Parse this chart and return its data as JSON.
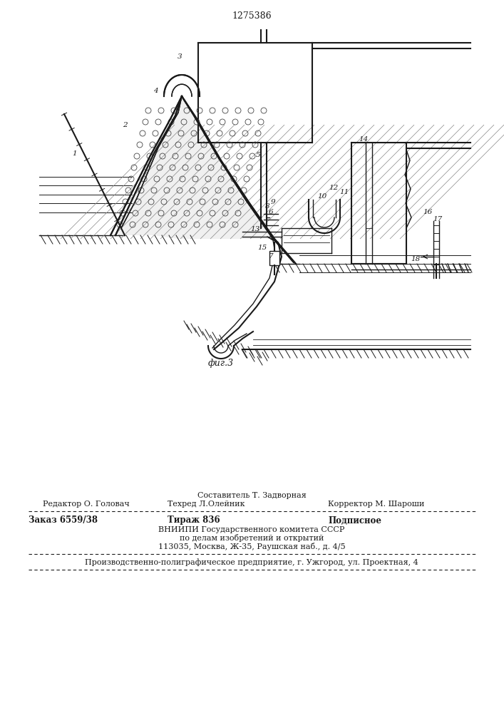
{
  "patent_number": "1275386",
  "fig_label": "фиг.3",
  "background_color": "#ffffff",
  "line_color": "#1a1a1a",
  "title_fontsize": 9,
  "label_fontsize": 8,
  "footer_line1_top": "Составитель Т. Задворная",
  "footer_line1_left": "Редактор О. Головач",
  "footer_line1_center": "Техред Л.Олейник",
  "footer_line1_right": "Корректор М. Шароши",
  "footer_line2_left": "Заказ 6559/38",
  "footer_line2_center": "Тираж 836",
  "footer_line2_right": "Подписное",
  "footer_line3": "ВНИИПИ Государственного комитета СССР",
  "footer_line4": "по делам изобретений и открытий",
  "footer_line5": "113035, Москва, Ж-35, Раушская наб., д. 4/5",
  "footer_line6": "Производственно-полиграфическое предприятие, г. Ужгород, ул. Проектная, 4"
}
